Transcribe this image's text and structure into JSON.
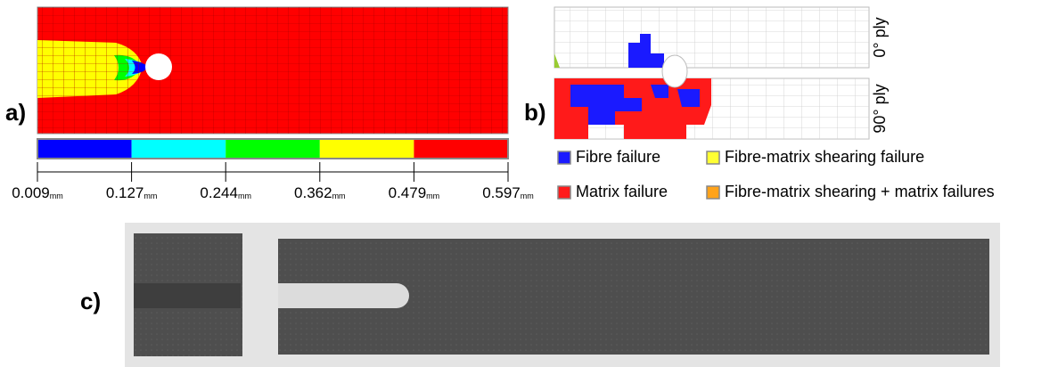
{
  "panels": {
    "a": {
      "label": "a)",
      "colorbar": {
        "colors": [
          "#0000ff",
          "#00ffff",
          "#00ff00",
          "#ffff00",
          "#ff0000"
        ],
        "ticks": [
          {
            "value": "0.009",
            "unit": "mm"
          },
          {
            "value": "0.127",
            "unit": "mm"
          },
          {
            "value": "0.244",
            "unit": "mm"
          },
          {
            "value": "0.362",
            "unit": "mm"
          },
          {
            "value": "0.479",
            "unit": "mm"
          },
          {
            "value": "0.597",
            "unit": "mm"
          }
        ]
      }
    },
    "b": {
      "label": "b)",
      "plies": [
        "0° ply",
        "90° ply"
      ],
      "legend": [
        {
          "label": "Fibre failure",
          "color": "#1a1aff"
        },
        {
          "label": "Fibre-matrix shearing failure",
          "color": "#ffff33"
        },
        {
          "label": "Matrix failure",
          "color": "#ff1a1a"
        },
        {
          "label": "Fibre-matrix shearing + matrix failures",
          "color": "#ffa31a"
        }
      ]
    },
    "c": {
      "label": "c)"
    }
  }
}
